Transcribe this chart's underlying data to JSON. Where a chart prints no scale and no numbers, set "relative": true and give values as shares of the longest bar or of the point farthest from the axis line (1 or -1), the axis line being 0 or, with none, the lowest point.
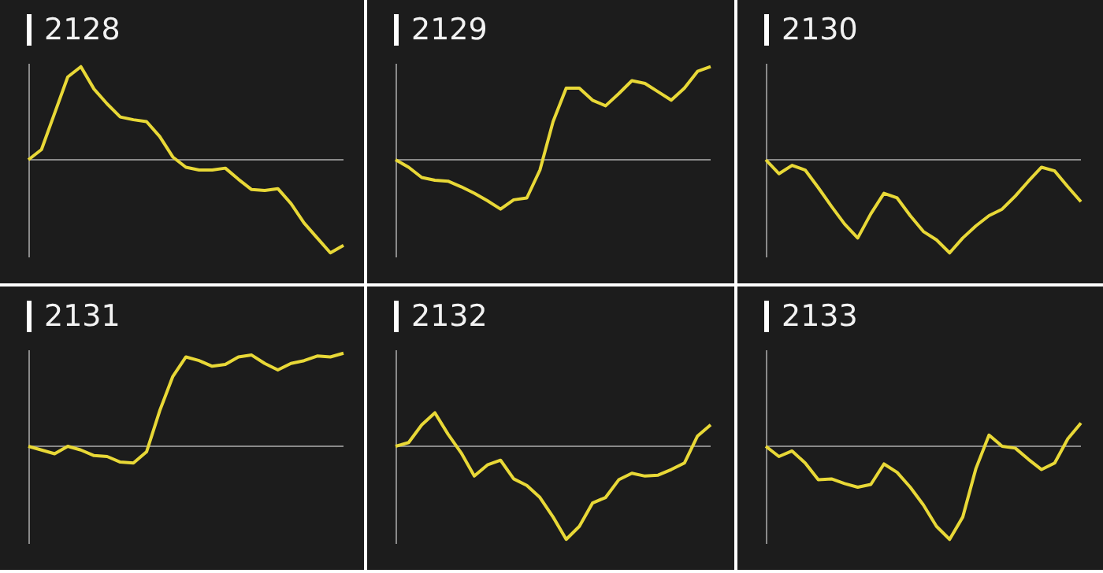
{
  "chart_data": [
    {
      "type": "line",
      "title": "2128",
      "relative": true,
      "categories": [
        null,
        null,
        null,
        null,
        null,
        null,
        null,
        null,
        null,
        null,
        null,
        null,
        null,
        null,
        null,
        null,
        null,
        null,
        null,
        null,
        null,
        null,
        null,
        null,
        null
      ],
      "series": [
        {
          "color": "#e8d837",
          "values": [
            0,
            0.11,
            0.5,
            0.89,
            1,
            0.76,
            0.6,
            0.46,
            0.43,
            0.41,
            0.25,
            0.03,
            -0.08,
            -0.11,
            -0.11,
            -0.09,
            -0.21,
            -0.32,
            -0.33,
            -0.31,
            -0.47,
            -0.68,
            -0.84,
            -1,
            -0.92
          ]
        }
      ]
    },
    {
      "type": "line",
      "title": "2129",
      "relative": true,
      "categories": [
        null,
        null,
        null,
        null,
        null,
        null,
        null,
        null,
        null,
        null,
        null,
        null,
        null,
        null,
        null,
        null,
        null,
        null,
        null,
        null,
        null,
        null,
        null,
        null,
        null
      ],
      "series": [
        {
          "color": "#e8d837",
          "values": [
            0,
            -0.08,
            -0.19,
            -0.22,
            -0.23,
            -0.29,
            -0.36,
            -0.44,
            -0.53,
            -0.43,
            -0.41,
            -0.11,
            0.41,
            0.77,
            0.77,
            0.64,
            0.58,
            0.71,
            0.85,
            0.82,
            0.73,
            0.64,
            0.77,
            0.95,
            1
          ]
        }
      ]
    },
    {
      "type": "line",
      "title": "2130",
      "relative": true,
      "categories": [
        null,
        null,
        null,
        null,
        null,
        null,
        null,
        null,
        null,
        null,
        null,
        null,
        null,
        null,
        null,
        null,
        null,
        null,
        null,
        null,
        null,
        null,
        null,
        null,
        null
      ],
      "series": [
        {
          "color": "#e8d837",
          "values": [
            0,
            -0.15,
            -0.06,
            -0.11,
            -0.3,
            -0.5,
            -0.69,
            -0.84,
            -0.58,
            -0.36,
            -0.41,
            -0.6,
            -0.77,
            -0.86,
            -1,
            -0.84,
            -0.71,
            -0.6,
            -0.53,
            -0.39,
            -0.23,
            -0.08,
            -0.12,
            -0.29,
            -0.45
          ]
        }
      ]
    },
    {
      "type": "line",
      "title": "2131",
      "relative": true,
      "categories": [
        null,
        null,
        null,
        null,
        null,
        null,
        null,
        null,
        null,
        null,
        null,
        null,
        null,
        null,
        null,
        null,
        null,
        null,
        null,
        null,
        null,
        null,
        null,
        null,
        null
      ],
      "series": [
        {
          "color": "#e8d837",
          "values": [
            0,
            -0.04,
            -0.08,
            0,
            -0.04,
            -0.1,
            -0.11,
            -0.17,
            -0.18,
            -0.06,
            0.38,
            0.75,
            0.96,
            0.92,
            0.86,
            0.88,
            0.96,
            0.98,
            0.89,
            0.82,
            0.89,
            0.92,
            0.97,
            0.96,
            1
          ]
        }
      ]
    },
    {
      "type": "line",
      "title": "2132",
      "relative": true,
      "categories": [
        null,
        null,
        null,
        null,
        null,
        null,
        null,
        null,
        null,
        null,
        null,
        null,
        null,
        null,
        null,
        null,
        null,
        null,
        null,
        null,
        null,
        null,
        null,
        null,
        null
      ],
      "series": [
        {
          "color": "#e8d837",
          "values": [
            0,
            0.04,
            0.23,
            0.36,
            0.13,
            -0.07,
            -0.32,
            -0.2,
            -0.15,
            -0.35,
            -0.42,
            -0.55,
            -0.76,
            -1,
            -0.86,
            -0.61,
            -0.55,
            -0.36,
            -0.29,
            -0.32,
            -0.31,
            -0.25,
            -0.18,
            0.11,
            0.23
          ]
        }
      ]
    },
    {
      "type": "line",
      "title": "2133",
      "relative": true,
      "categories": [
        null,
        null,
        null,
        null,
        null,
        null,
        null,
        null,
        null,
        null,
        null,
        null,
        null,
        null,
        null,
        null,
        null,
        null,
        null,
        null,
        null,
        null,
        null,
        null,
        null
      ],
      "series": [
        {
          "color": "#e8d837",
          "values": [
            0,
            -0.11,
            -0.05,
            -0.18,
            -0.36,
            -0.35,
            -0.4,
            -0.44,
            -0.41,
            -0.19,
            -0.28,
            -0.44,
            -0.63,
            -0.86,
            -1,
            -0.76,
            -0.24,
            0.12,
            0,
            -0.02,
            -0.14,
            -0.25,
            -0.18,
            0.08,
            0.25
          ]
        }
      ]
    }
  ]
}
